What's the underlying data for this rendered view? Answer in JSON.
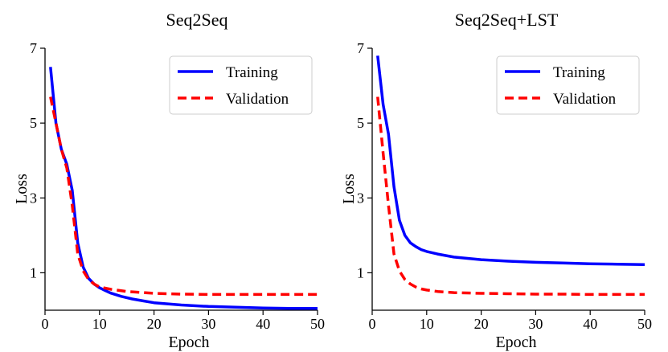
{
  "chart_data": [
    {
      "type": "line",
      "title": "Seq2Seq",
      "xlabel": "Epoch",
      "ylabel": "Loss",
      "xlim": [
        0,
        50
      ],
      "ylim": [
        0,
        7
      ],
      "xticks": [
        0,
        10,
        20,
        30,
        40,
        50
      ],
      "yticks": [
        1,
        3,
        5,
        7
      ],
      "grid": false,
      "legend_position": "top-right",
      "series": [
        {
          "name": "Training",
          "color": "#0000ff",
          "style": "solid",
          "x": [
            1,
            2,
            3,
            4,
            5,
            6,
            7,
            8,
            9,
            10,
            12,
            14,
            16,
            18,
            20,
            25,
            30,
            35,
            40,
            45,
            50
          ],
          "y": [
            6.5,
            5.0,
            4.3,
            3.9,
            3.2,
            1.8,
            1.15,
            0.85,
            0.7,
            0.6,
            0.46,
            0.37,
            0.3,
            0.25,
            0.2,
            0.14,
            0.1,
            0.08,
            0.06,
            0.05,
            0.05
          ]
        },
        {
          "name": "Validation",
          "color": "#ff0000",
          "style": "dashed",
          "x": [
            1,
            2,
            3,
            4,
            5,
            6,
            7,
            8,
            9,
            10,
            12,
            15,
            20,
            25,
            30,
            35,
            40,
            45,
            50
          ],
          "y": [
            5.7,
            5.0,
            4.3,
            3.8,
            2.8,
            1.5,
            1.05,
            0.82,
            0.7,
            0.62,
            0.56,
            0.5,
            0.45,
            0.43,
            0.42,
            0.42,
            0.42,
            0.42,
            0.42
          ]
        }
      ]
    },
    {
      "type": "line",
      "title": "Seq2Seq+LST",
      "xlabel": "Epoch",
      "ylabel": "Loss",
      "xlim": [
        0,
        50
      ],
      "ylim": [
        0,
        7
      ],
      "xticks": [
        0,
        10,
        20,
        30,
        40,
        50
      ],
      "yticks": [
        1,
        3,
        5,
        7
      ],
      "grid": false,
      "legend_position": "top-right",
      "series": [
        {
          "name": "Training",
          "color": "#0000ff",
          "style": "solid",
          "x": [
            1,
            2,
            3,
            4,
            5,
            6,
            7,
            8,
            9,
            10,
            12,
            15,
            20,
            25,
            30,
            35,
            40,
            45,
            50
          ],
          "y": [
            6.8,
            5.5,
            4.7,
            3.3,
            2.4,
            2.0,
            1.8,
            1.7,
            1.62,
            1.57,
            1.5,
            1.42,
            1.35,
            1.31,
            1.28,
            1.26,
            1.24,
            1.23,
            1.22
          ]
        },
        {
          "name": "Validation",
          "color": "#ff0000",
          "style": "dashed",
          "x": [
            1,
            2,
            3,
            4,
            5,
            6,
            7,
            8,
            9,
            10,
            12,
            15,
            20,
            25,
            30,
            35,
            40,
            45,
            50
          ],
          "y": [
            5.7,
            4.2,
            2.8,
            1.5,
            1.05,
            0.82,
            0.7,
            0.62,
            0.57,
            0.54,
            0.5,
            0.47,
            0.45,
            0.44,
            0.43,
            0.43,
            0.42,
            0.42,
            0.42
          ]
        }
      ]
    }
  ]
}
